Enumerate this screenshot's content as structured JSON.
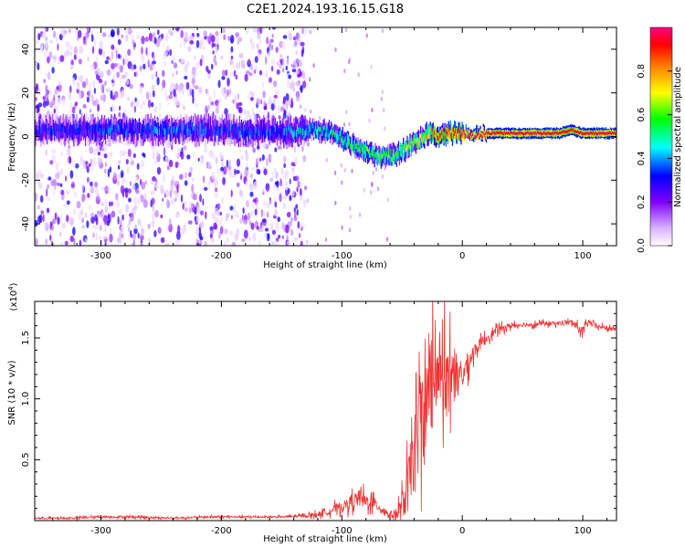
{
  "title": "C2E1.2024.193.16.15.G18",
  "chart_data": [
    {
      "type": "heatmap",
      "xlabel": "Height of straight line (km)",
      "ylabel": "Frequency (Hz)",
      "xlim": [
        -355,
        128
      ],
      "ylim": [
        -50,
        50
      ],
      "xticks": [
        -300,
        -200,
        -100,
        0,
        100
      ],
      "yticks": [
        -40,
        -20,
        0,
        20,
        40
      ],
      "colorbar": {
        "label": "Normalized spectral amplitude",
        "range": [
          0,
          1
        ],
        "ticks": [
          0.0,
          0.2,
          0.4,
          0.6,
          0.8
        ],
        "colormap": [
          "#ffffff",
          "#d9b3ff",
          "#8000ff",
          "#0000ff",
          "#00ffff",
          "#00ff00",
          "#ffff00",
          "#ff8000",
          "#ff0000",
          "#ff0080"
        ]
      },
      "ridge": {
        "x": [
          -355,
          -300,
          -250,
          -200,
          -150,
          -125,
          -110,
          -100,
          -90,
          -80,
          -70,
          -62,
          -55,
          -45,
          -35,
          -28,
          -20,
          -10,
          0,
          50,
          80,
          90,
          100,
          128
        ],
        "freq": [
          3,
          3,
          3,
          3,
          2,
          3,
          2,
          -1,
          -4,
          -7,
          -9,
          -9,
          -8,
          -5,
          -1,
          2,
          0.5,
          1.5,
          1.5,
          1.5,
          1.5,
          3,
          1.5,
          1.5
        ],
        "amplitude": [
          0.3,
          0.32,
          0.35,
          0.33,
          0.35,
          0.45,
          0.5,
          0.55,
          0.55,
          0.6,
          0.58,
          0.6,
          0.6,
          0.65,
          0.7,
          0.75,
          0.85,
          0.92,
          0.95,
          0.95,
          0.95,
          0.9,
          0.95,
          0.95
        ]
      }
    },
    {
      "type": "line",
      "xlabel": "Height of straight line (km)",
      "ylabel": "SNR (10 * v/v)",
      "scale_label": "(x10",
      "scale_exponent": "4",
      "scale_suffix": ")",
      "xlim": [
        -355,
        128
      ],
      "ylim": [
        0,
        1.8
      ],
      "xticks": [
        -300,
        -200,
        -100,
        0,
        100
      ],
      "yticks": [
        0.5,
        1.0,
        1.5
      ],
      "yticklabels": [
        "0.5",
        "1.0",
        "1.5"
      ],
      "color": "#ee3333",
      "series": [
        {
          "x": [
            -355,
            -330,
            -300,
            -270,
            -240,
            -210,
            -180,
            -150,
            -130,
            -115,
            -105,
            -95,
            -90,
            -85,
            -80,
            -75,
            -70,
            -65,
            -60,
            -55,
            -50,
            -45,
            -40,
            -35,
            -30,
            -25,
            -20,
            -15,
            -10,
            -5,
            0,
            5,
            10,
            20,
            30,
            40,
            50,
            60,
            70,
            80,
            90,
            95,
            100,
            105,
            110,
            120,
            128
          ],
          "y": [
            0.02,
            0.02,
            0.03,
            0.03,
            0.02,
            0.03,
            0.03,
            0.03,
            0.04,
            0.06,
            0.1,
            0.13,
            0.17,
            0.18,
            0.16,
            0.15,
            0.12,
            0.08,
            0.05,
            0.05,
            0.1,
            0.3,
            0.55,
            0.8,
            0.95,
            1.05,
            1.1,
            1.15,
            1.1,
            1.1,
            1.2,
            1.3,
            1.4,
            1.5,
            1.57,
            1.6,
            1.61,
            1.61,
            1.62,
            1.62,
            1.63,
            1.6,
            1.55,
            1.63,
            1.6,
            1.58,
            1.57
          ],
          "jitter": [
            0.01,
            0.01,
            0.015,
            0.015,
            0.01,
            0.012,
            0.012,
            0.012,
            0.02,
            0.04,
            0.06,
            0.08,
            0.1,
            0.12,
            0.1,
            0.09,
            0.07,
            0.05,
            0.04,
            0.08,
            0.2,
            0.35,
            0.5,
            0.6,
            0.6,
            0.55,
            0.55,
            0.45,
            0.35,
            0.25,
            0.2,
            0.15,
            0.1,
            0.06,
            0.05,
            0.04,
            0.03,
            0.03,
            0.03,
            0.03,
            0.03,
            0.04,
            0.06,
            0.04,
            0.03,
            0.03,
            0.03
          ]
        }
      ]
    }
  ]
}
